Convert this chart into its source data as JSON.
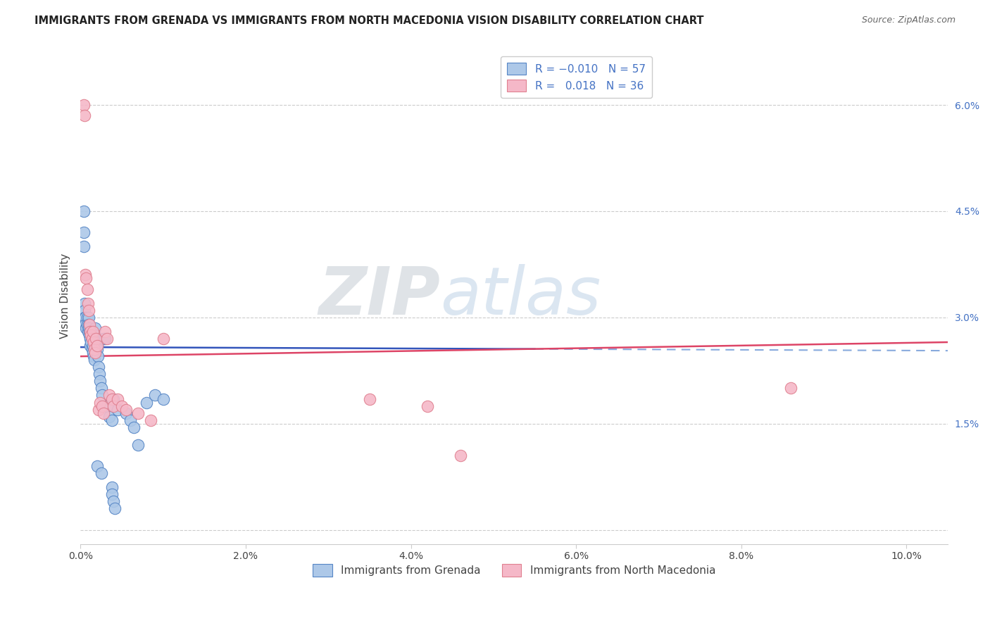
{
  "title": "IMMIGRANTS FROM GRENADA VS IMMIGRANTS FROM NORTH MACEDONIA VISION DISABILITY CORRELATION CHART",
  "source": "Source: ZipAtlas.com",
  "ylabel": "Vision Disability",
  "yticks": [
    0.0,
    0.015,
    0.03,
    0.045,
    0.06
  ],
  "ytick_labels": [
    "",
    "1.5%",
    "3.0%",
    "4.5%",
    "6.0%"
  ],
  "xticks": [
    0.0,
    0.02,
    0.04,
    0.06,
    0.08,
    0.1
  ],
  "xtick_labels": [
    "0.0%",
    "2.0%",
    "4.0%",
    "6.0%",
    "8.0%",
    "10.0%"
  ],
  "xlim": [
    0.0,
    0.105
  ],
  "ylim": [
    -0.002,
    0.068
  ],
  "color_blue": "#adc8e8",
  "color_pink": "#f5b8c8",
  "color_blue_edge": "#5585c5",
  "color_pink_edge": "#e08090",
  "trendline_blue_solid": "#3355bb",
  "trendline_blue_dash": "#88aadd",
  "trendline_pink": "#dd4466",
  "watermark_zip": "#c8d8e8",
  "watermark_atlas": "#b8cfe8",
  "grenada_x": [
    0.0004,
    0.0004,
    0.0004,
    0.0005,
    0.0005,
    0.0005,
    0.0005,
    0.0006,
    0.0006,
    0.0007,
    0.0008,
    0.0008,
    0.0009,
    0.001,
    0.001,
    0.001,
    0.0011,
    0.0011,
    0.0012,
    0.0012,
    0.0013,
    0.0014,
    0.0015,
    0.0015,
    0.0016,
    0.0017,
    0.0018,
    0.0018,
    0.0019,
    0.002,
    0.002,
    0.0021,
    0.0022,
    0.0023,
    0.0024,
    0.0025,
    0.0026,
    0.0028,
    0.003,
    0.0032,
    0.0035,
    0.0038,
    0.004,
    0.0045,
    0.0055,
    0.006,
    0.0065,
    0.007,
    0.008,
    0.009,
    0.01,
    0.002,
    0.0025,
    0.0038,
    0.0038,
    0.004,
    0.0042
  ],
  "grenada_y": [
    0.045,
    0.042,
    0.04,
    0.032,
    0.031,
    0.03,
    0.029,
    0.03,
    0.029,
    0.0285,
    0.03,
    0.029,
    0.028,
    0.03,
    0.029,
    0.0285,
    0.028,
    0.0275,
    0.027,
    0.026,
    0.0265,
    0.0255,
    0.026,
    0.025,
    0.0245,
    0.024,
    0.0285,
    0.0275,
    0.027,
    0.026,
    0.0255,
    0.0245,
    0.023,
    0.022,
    0.021,
    0.02,
    0.019,
    0.027,
    0.027,
    0.0175,
    0.016,
    0.0155,
    0.0185,
    0.017,
    0.0165,
    0.0155,
    0.0145,
    0.012,
    0.018,
    0.019,
    0.0185,
    0.009,
    0.008,
    0.006,
    0.005,
    0.004,
    0.003
  ],
  "macedonia_x": [
    0.0004,
    0.0005,
    0.0006,
    0.0007,
    0.0008,
    0.0009,
    0.001,
    0.0011,
    0.0012,
    0.0013,
    0.0014,
    0.0015,
    0.0016,
    0.0017,
    0.0018,
    0.0019,
    0.002,
    0.0022,
    0.0024,
    0.0026,
    0.0028,
    0.003,
    0.0032,
    0.0035,
    0.0038,
    0.004,
    0.0045,
    0.005,
    0.0055,
    0.007,
    0.0085,
    0.01,
    0.035,
    0.042,
    0.046,
    0.086
  ],
  "macedonia_y": [
    0.06,
    0.0585,
    0.036,
    0.0355,
    0.034,
    0.032,
    0.031,
    0.029,
    0.028,
    0.0275,
    0.027,
    0.028,
    0.0265,
    0.0255,
    0.025,
    0.027,
    0.026,
    0.017,
    0.018,
    0.0175,
    0.0165,
    0.028,
    0.027,
    0.019,
    0.0185,
    0.0175,
    0.0185,
    0.0175,
    0.017,
    0.0165,
    0.0155,
    0.027,
    0.0185,
    0.0175,
    0.0105,
    0.02
  ],
  "trendline_y_blue_start": 0.0258,
  "trendline_y_blue_end": 0.0253,
  "trendline_y_pink_start": 0.0245,
  "trendline_y_pink_end": 0.0265,
  "trendline_dash_start_x": 0.055
}
